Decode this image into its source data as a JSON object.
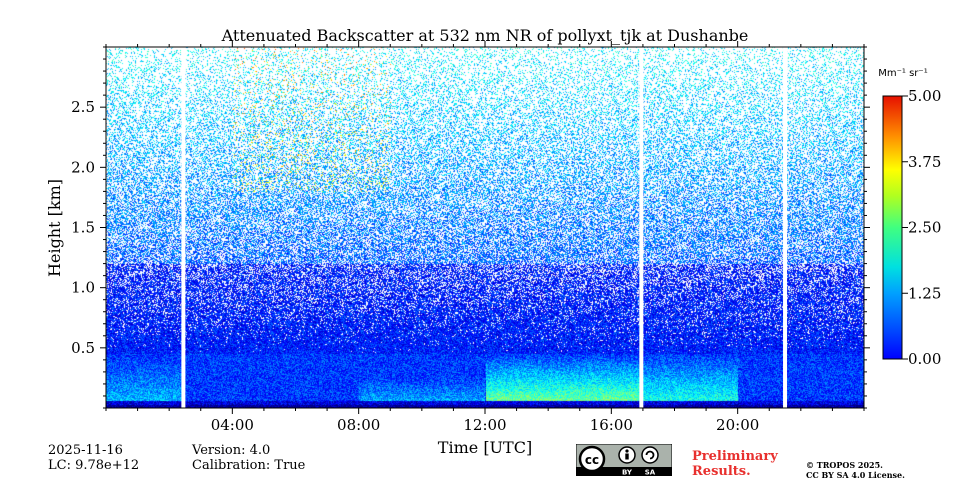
{
  "chart_data": {
    "type": "heatmap",
    "title": "Attenuated Backscatter at 532 nm NR of pollyxt_tjk at Dushanbe",
    "xlabel": "Time [UTC]",
    "ylabel": "Height [km]",
    "xlim": [
      0,
      24
    ],
    "ylim": [
      0,
      3.0
    ],
    "x_ticks": [
      {
        "value": 4,
        "label": "04:00"
      },
      {
        "value": 8,
        "label": "08:00"
      },
      {
        "value": 12,
        "label": "12:00"
      },
      {
        "value": 16,
        "label": "16:00"
      },
      {
        "value": 20,
        "label": "20:00"
      }
    ],
    "y_ticks": [
      {
        "value": 0.5,
        "label": "0.5"
      },
      {
        "value": 1.0,
        "label": "1.0"
      },
      {
        "value": 1.5,
        "label": "1.5"
      },
      {
        "value": 2.0,
        "label": "2.0"
      },
      {
        "value": 2.5,
        "label": "2.5"
      }
    ],
    "data_gaps_hours": [
      2.45,
      16.95,
      21.5
    ],
    "colorbar": {
      "label": "Mm⁻¹ sr⁻¹",
      "min": 0.0,
      "max": 5.0,
      "ticks": [
        {
          "value": 0.0,
          "label": "0.00"
        },
        {
          "value": 1.25,
          "label": "1.25"
        },
        {
          "value": 2.5,
          "label": "2.50"
        },
        {
          "value": 3.75,
          "label": "3.75"
        },
        {
          "value": 5.0,
          "label": "5.00"
        }
      ],
      "colormap": "jet"
    }
  },
  "footer": {
    "date": "2025-11-16",
    "lc": "LC: 9.78e+12",
    "version": "Version: 4.0",
    "calibration": "Calibration: True",
    "preliminary_line1": "Preliminary",
    "preliminary_line2": "Results.",
    "copyright_line1": "© TROPOS 2025.",
    "copyright_line2": "CC BY SA 4.0 License.",
    "license_by": "BY",
    "license_sa": "SA"
  }
}
